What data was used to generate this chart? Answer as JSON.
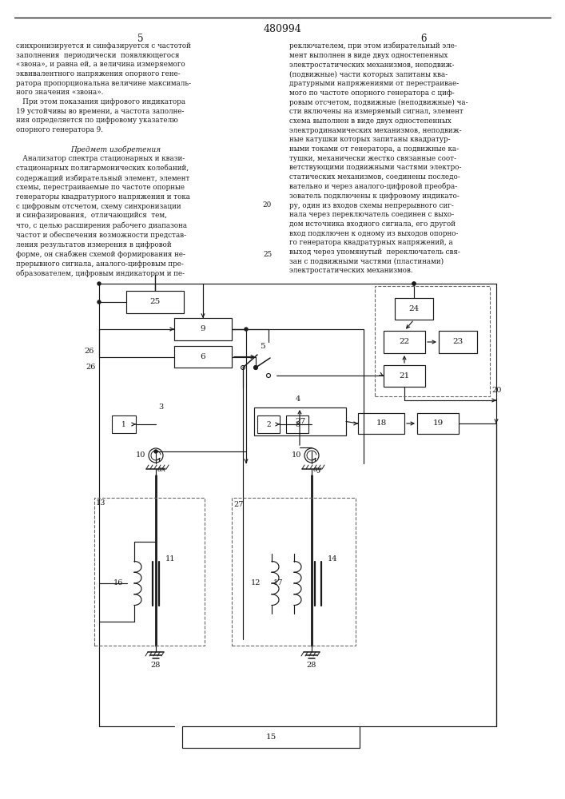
{
  "bg_color": "#ffffff",
  "lc": "#1a1a1a",
  "page_number": "480994",
  "col_left": "5",
  "col_right": "6",
  "left_text1": "синхронизируется и синфазируется с частотой\nзаполнения  периодически  появляющегося\n«звона», и равна ей, а величина измеряемого\nэквивалентного напряжения опорного гене-\nратора пропорциональна величине максималь-\nного значения «звона».\n   При этом показания цифрового индикатора\n19 устойчивы во времени, а частота заполне-\nния определяется по цифровому указателю\nопорного генератора 9.",
  "predmet_header": "Предмет изобретения",
  "left_text2": "   Анализатор спектра стационарных и квази-\nстационарных полигармонических колебаний,\nсодержащий избирательный элемент, элемент\nсхемы, перестраиваемые по частоте опорные\nгенераторы квадратурного напряжения и тока\nс цифровым отсчетом, схему синхронизации\nи синфазирования,  отличающийся  тем,\nчто, с целью расширения рабочего диапазона\nчастот и обеспечения возможности представ-\nления результатов измерения в цифровой\nформе, он снабжен схемой формирования не-\nпрерывного сигнала, аналого-цифровым пре-\nобразователем, цифровым индикатором и пе-",
  "right_text": "реключателем, при этом избирательный эле-\nмент выполнен в виде двух одностепенных\nэлектростатических механизмов, неподвиж-\n(подвижные) части которых запитаны ква-\nдратурными напряжениями от перестраивае-\nмого по частоте опорного генератора с циф-\nровым отсчетом, подвижные (неподвижные) ча-\nсти включены на измеряемый сигнал, элемент\nсхема выполнен в виде двух одностепенных\nэлектродинамических механизмов, неподвиж-\nные катушки которых запитаны квадратур-\nными токами от генератора, а подвижные ка-\nтушки, механически жестко связанные соот-\nветствующими подвижными частями электро-\nстатических механизмов, соединены последо-\nвательно и через аналого-цифровой преобра-\nзователь подключены к цифровому индикато-\nру, один из входов схемы непрерывного сиг-\nнала через переключатель соединен с выхо-\nдом источника входного сигнала, его другой\nвход подключен к одному из выходов опорно-\nго генератора квадратурных напряжений, а\nвыход через упомянутый  переключатель свя-\nзан с подвижными частями (пластинами)\nэлектростатических механизмов."
}
